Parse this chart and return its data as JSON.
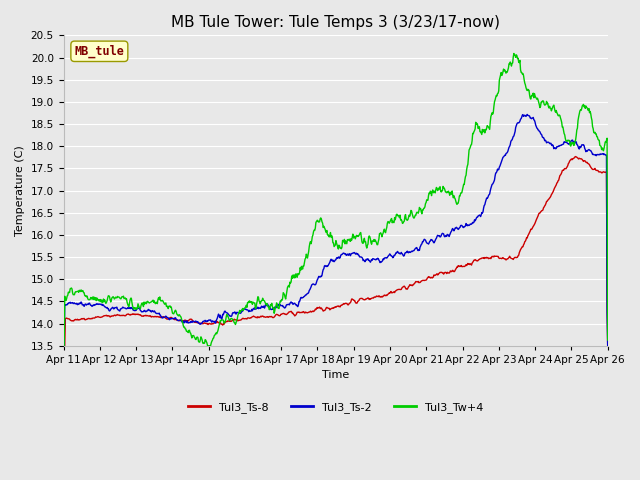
{
  "title": "MB Tule Tower: Tule Temps 3 (3/23/17-now)",
  "ylabel": "Temperature (C)",
  "xlabel": "Time",
  "xlim": [
    0,
    15
  ],
  "ylim": [
    13.5,
    20.5
  ],
  "yticks": [
    13.5,
    14.0,
    14.5,
    15.0,
    15.5,
    16.0,
    16.5,
    17.0,
    17.5,
    18.0,
    18.5,
    19.0,
    19.5,
    20.0,
    20.5
  ],
  "xtick_labels": [
    "Apr 11",
    "Apr 12",
    "Apr 13",
    "Apr 14",
    "Apr 15",
    "Apr 16",
    "Apr 17",
    "Apr 18",
    "Apr 19",
    "Apr 20",
    "Apr 21",
    "Apr 22",
    "Apr 23",
    "Apr 24",
    "Apr 25",
    "Apr 26"
  ],
  "legend_labels": [
    "Tul3_Ts-8",
    "Tul3_Ts-2",
    "Tul3_Tw+4"
  ],
  "line_colors": [
    "#cc0000",
    "#0000cc",
    "#00cc00"
  ],
  "watermark_text": "MB_tule",
  "watermark_bg": "#ffffcc",
  "watermark_fg": "#800000",
  "bg_color": "#e8e8e8",
  "plot_bg": "#e8e8e8",
  "grid_color": "#ffffff",
  "title_fontsize": 11,
  "axis_fontsize": 8,
  "tick_fontsize": 7.5
}
